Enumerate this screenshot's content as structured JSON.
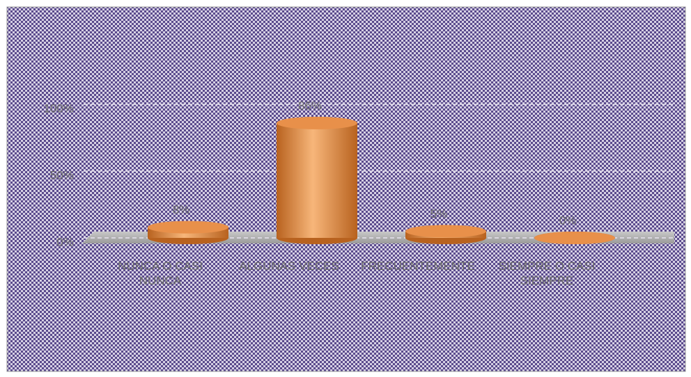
{
  "chart_data": {
    "type": "bar",
    "categories": [
      "NUNCA O CASI NUNCA",
      "ALGUNAS VECES",
      "FRECUENTEMENTE",
      "SIEMPRE O CASI SIEMPRE"
    ],
    "values": [
      8,
      86,
      5,
      0
    ],
    "value_labels": [
      "8%",
      "86%",
      "5%",
      "0%"
    ],
    "color": "#e8904a",
    "ylim": [
      0,
      100
    ],
    "yticks": [
      {
        "value": 0,
        "label": "0%"
      },
      {
        "value": 50,
        "label": "50%"
      },
      {
        "value": 100,
        "label": "100%"
      }
    ],
    "grid": true
  }
}
